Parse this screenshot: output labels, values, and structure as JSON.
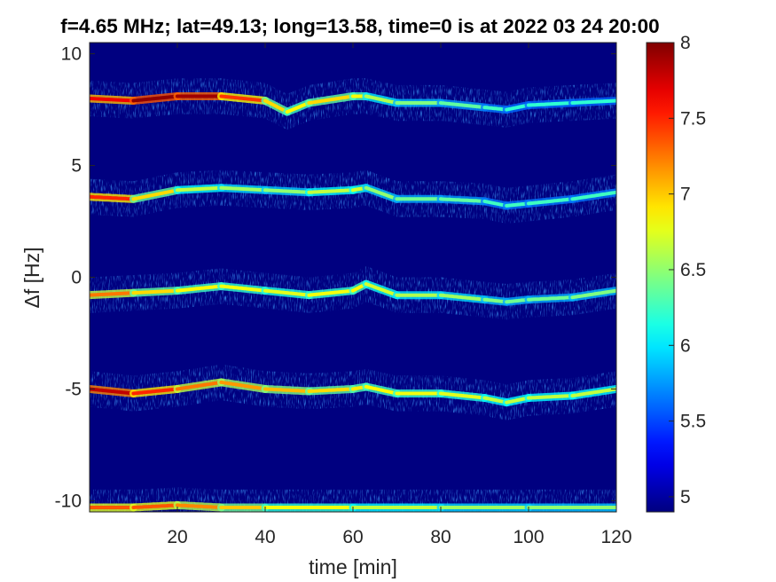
{
  "chart_data": {
    "type": "heatmap",
    "title": "f=4.65 MHz;  lat=49.13; long=13.58, time=0 is at 2022 03 24 20:00",
    "xlabel": "time [min]",
    "ylabel": "Δf [Hz]",
    "xlim": [
      0,
      120
    ],
    "ylim": [
      -10.5,
      10.5
    ],
    "xticks": [
      20,
      40,
      60,
      80,
      100,
      120
    ],
    "xtick_labels": [
      "20",
      "40",
      "60",
      "80",
      "100",
      "120"
    ],
    "yticks": [
      10,
      5,
      0,
      -5,
      -10
    ],
    "ytick_labels": [
      "10",
      "5",
      "0",
      "-5",
      "-10"
    ],
    "colorbar": {
      "range": [
        4.9,
        8.0
      ],
      "ticks": [
        8,
        7.5,
        7,
        6.5,
        6,
        5.5,
        5
      ],
      "tick_labels": [
        "8",
        "7.5",
        "7",
        "6.5",
        "6",
        "5.5",
        "5"
      ],
      "colormap": "jet"
    },
    "background_level": 4.9,
    "colors": {
      "background": "#00008f",
      "axes_frame": "#262626"
    },
    "series": [
      {
        "x": [
          0,
          10,
          20,
          30,
          40,
          45,
          50,
          60,
          63,
          70,
          80,
          90,
          95,
          100,
          110,
          120
        ],
        "y": [
          8.0,
          7.9,
          8.1,
          8.1,
          7.9,
          7.4,
          7.8,
          8.1,
          8.1,
          7.8,
          7.8,
          7.6,
          7.5,
          7.7,
          7.8,
          7.9
        ],
        "peak_intensity": [
          7.4,
          7.9,
          8.0,
          7.8,
          7.1,
          6.8,
          6.9,
          7.0,
          6.7,
          6.5,
          6.4,
          6.3,
          6.2,
          6.2,
          6.2,
          6.2
        ]
      },
      {
        "x": [
          0,
          10,
          20,
          30,
          40,
          50,
          60,
          63,
          70,
          80,
          90,
          95,
          100,
          110,
          120
        ],
        "y": [
          3.6,
          3.5,
          3.9,
          4.0,
          3.9,
          3.8,
          3.9,
          4.0,
          3.5,
          3.5,
          3.4,
          3.2,
          3.3,
          3.5,
          3.8
        ],
        "peak_intensity": [
          7.8,
          7.2,
          6.7,
          6.6,
          6.5,
          6.5,
          6.8,
          6.6,
          6.4,
          6.4,
          6.3,
          6.2,
          6.3,
          6.2,
          6.3
        ]
      },
      {
        "x": [
          0,
          10,
          20,
          30,
          40,
          50,
          60,
          63,
          70,
          80,
          90,
          95,
          100,
          110,
          120
        ],
        "y": [
          -0.8,
          -0.7,
          -0.6,
          -0.4,
          -0.6,
          -0.8,
          -0.6,
          -0.3,
          -0.8,
          -0.8,
          -1.0,
          -1.1,
          -1.0,
          -0.9,
          -0.6
        ],
        "peak_intensity": [
          7.5,
          7.0,
          6.9,
          6.8,
          6.8,
          6.7,
          6.9,
          6.8,
          6.6,
          6.6,
          6.5,
          6.4,
          6.4,
          6.4,
          6.5
        ]
      },
      {
        "x": [
          0,
          10,
          20,
          30,
          40,
          50,
          60,
          63,
          70,
          80,
          90,
          95,
          100,
          110,
          120
        ],
        "y": [
          -5.0,
          -5.2,
          -5.0,
          -4.7,
          -5.0,
          -5.1,
          -5.0,
          -4.9,
          -5.2,
          -5.2,
          -5.4,
          -5.6,
          -5.4,
          -5.3,
          -5.0
        ],
        "peak_intensity": [
          7.9,
          7.7,
          7.3,
          7.2,
          7.1,
          7.0,
          6.9,
          6.9,
          6.8,
          6.8,
          6.7,
          6.6,
          6.7,
          6.6,
          6.7
        ]
      },
      {
        "x": [
          0,
          10,
          20,
          30,
          40,
          60,
          80,
          100,
          120
        ],
        "y": [
          -10.3,
          -10.3,
          -10.2,
          -10.3,
          -10.3,
          -10.3,
          -10.3,
          -10.3,
          -10.3
        ],
        "peak_intensity": [
          7.3,
          7.4,
          7.3,
          7.1,
          6.9,
          6.7,
          6.6,
          6.5,
          6.5
        ]
      }
    ]
  }
}
